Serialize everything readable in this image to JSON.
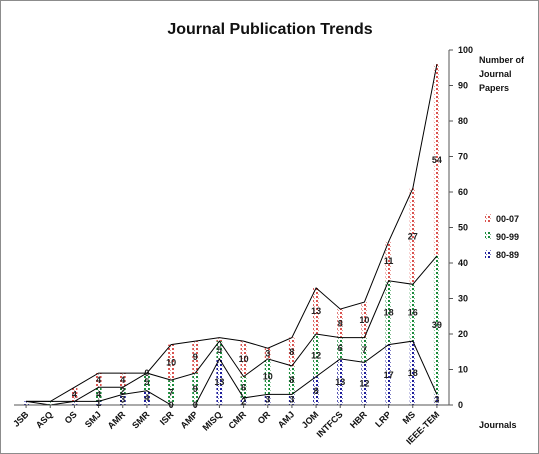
{
  "chart_data": {
    "type": "area",
    "title": "Journal Publication Trends",
    "xlabel": "Journals",
    "ylabel": "Number of Journal Papers",
    "ylabel_lines": [
      "Number of",
      "Journal",
      "Papers"
    ],
    "ylim": [
      0,
      100
    ],
    "yticks": [
      0,
      10,
      20,
      30,
      40,
      50,
      60,
      70,
      80,
      90,
      100
    ],
    "y_axis_side": "right",
    "stacked": true,
    "legend_position": "right",
    "categories": [
      "JSB",
      "ASQ",
      "OS",
      "SMJ",
      "AMR",
      "SMR",
      "ISR",
      "AMP",
      "MISQ",
      "CMR",
      "OR",
      "AMJ",
      "JOM",
      "INTFCS",
      "HBR",
      "LRP",
      "MS",
      "IEEE-TEM"
    ],
    "series": [
      {
        "name": "80-89",
        "color": "#1f1f9a",
        "values": [
          1,
          0,
          1,
          1,
          3,
          4,
          0,
          0,
          13,
          2,
          3,
          3,
          8,
          13,
          12,
          17,
          18,
          3
        ],
        "labels": [
          "",
          "",
          "",
          "1",
          "3",
          "4",
          "0",
          "0",
          "13",
          "2",
          "3",
          "3",
          "8",
          "13",
          "12",
          "17",
          "18",
          "3"
        ]
      },
      {
        "name": "90-99",
        "color": "#1a8a3a",
        "values": [
          0,
          1,
          0,
          4,
          2,
          5,
          7,
          9,
          5,
          6,
          10,
          8,
          12,
          6,
          7,
          18,
          16,
          39
        ],
        "labels": [
          "",
          "",
          "",
          "4",
          "2",
          "5",
          "7",
          "9",
          "5",
          "6",
          "10",
          "8",
          "12",
          "6",
          "7",
          "18",
          "16",
          "39"
        ]
      },
      {
        "name": "00-07",
        "color": "#d9534f",
        "values": [
          0,
          0,
          4,
          4,
          4,
          0,
          10,
          9,
          1,
          10,
          3,
          8,
          13,
          8,
          10,
          11,
          27,
          54
        ],
        "labels": [
          "",
          "",
          "4",
          "4",
          "4",
          "0",
          "10",
          "9",
          "",
          "10",
          "3",
          "8",
          "13",
          "8",
          "10",
          "11",
          "27",
          "54"
        ]
      }
    ],
    "legend_order": [
      "00-07",
      "90-99",
      "80-89"
    ]
  }
}
